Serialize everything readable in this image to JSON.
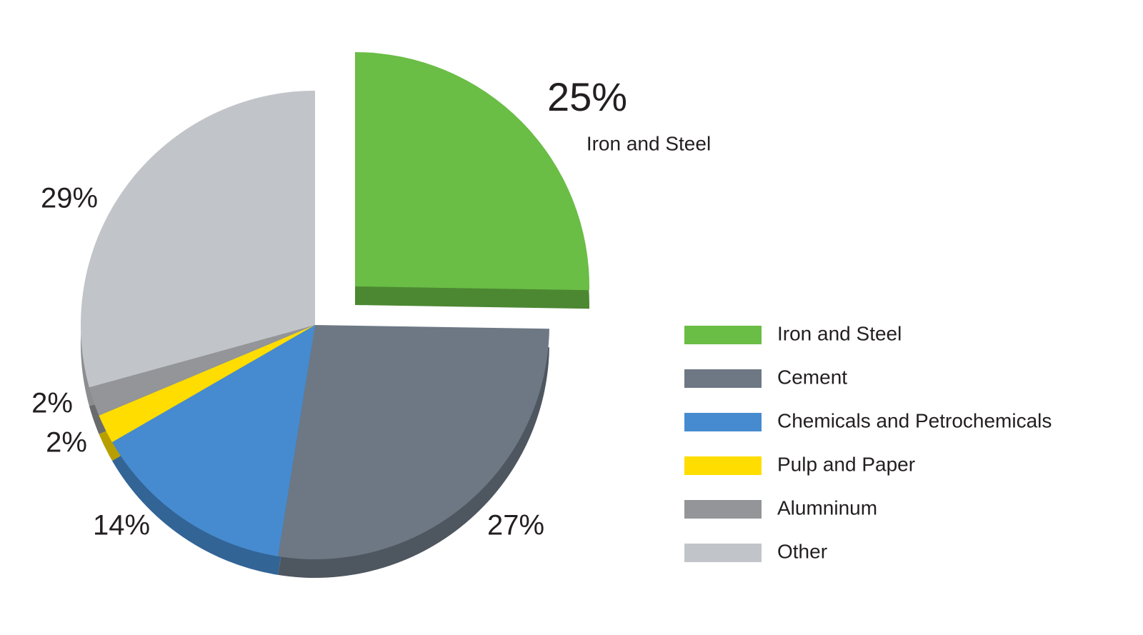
{
  "chart_data": {
    "type": "pie",
    "categories": [
      "Iron and Steel",
      "Cement",
      "Chemicals and Petrochemicals",
      "Pulp and Paper",
      "Alumninum",
      "Other"
    ],
    "values": [
      25,
      27,
      14,
      2,
      2,
      29
    ],
    "value_labels": [
      "25%",
      "27%",
      "14%",
      "2%",
      "2%",
      "29%"
    ],
    "colors": [
      "#6abd45",
      "#6d7884",
      "#468bcf",
      "#ffdd00",
      "#939598",
      "#c1c4c8"
    ],
    "legend": "right"
  }
}
